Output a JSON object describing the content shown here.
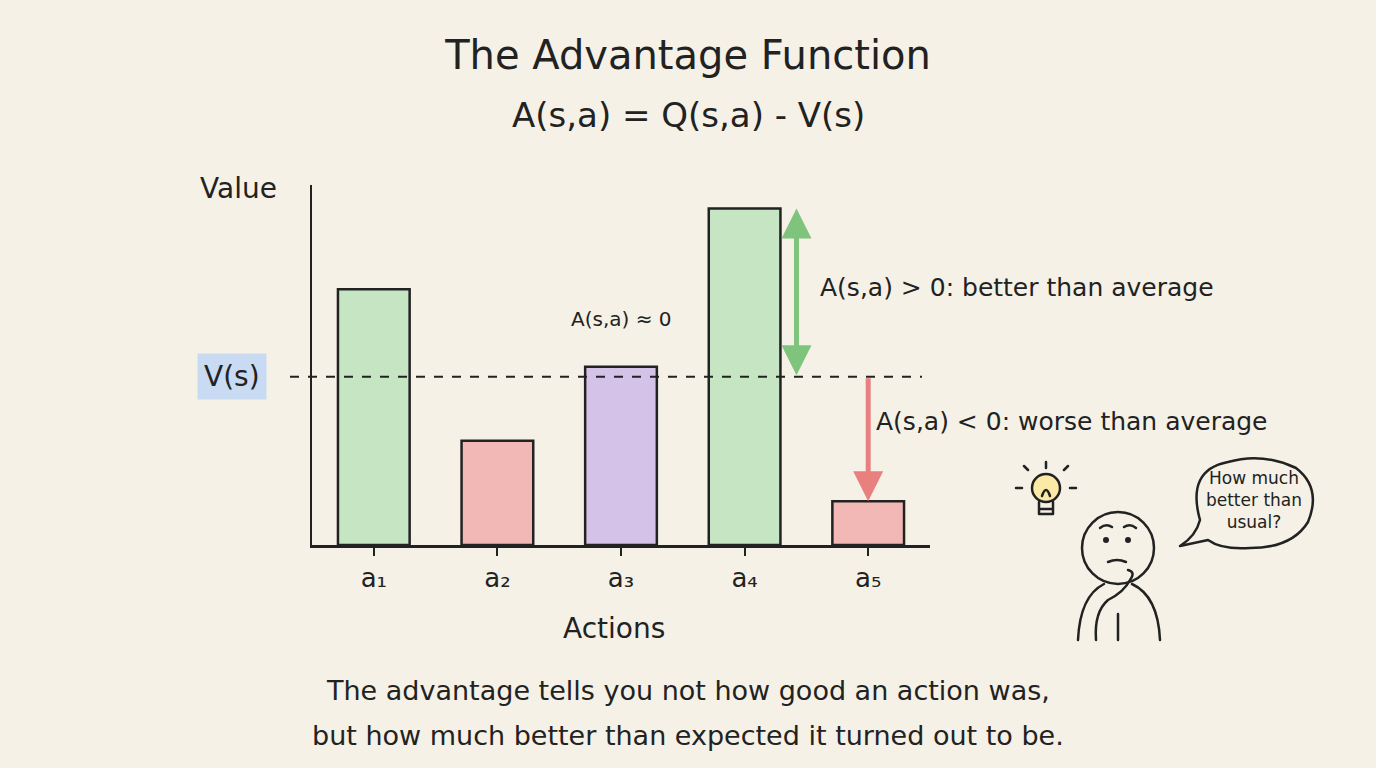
{
  "chart_data": {
    "type": "bar",
    "title": "The Advantage Function",
    "subtitle": "A(s,a) = Q(s,a) - V(s)",
    "x_label": "Actions",
    "y_label": "Value",
    "categories": [
      "a₁",
      "a₂",
      "a₃",
      "a₄",
      "a₅"
    ],
    "values": [
      76,
      31,
      53,
      100,
      13
    ],
    "colors": [
      "#c6e5c3",
      "#f2b8b5",
      "#d5c2e8",
      "#c6e5c3",
      "#f2b8b5"
    ],
    "ylim": [
      0,
      107
    ],
    "yticks": [],
    "grid": false,
    "tick_labels": "x",
    "reference": {
      "label": "V(s)",
      "value": 50
    },
    "annotations": {
      "near_zero": "A(s,a) ≈ 0",
      "positive": "A(s,a) > 0: better than average",
      "negative": "A(s,a) < 0: worse than average"
    },
    "thought_bubble": [
      "How much",
      "better than",
      "usual?"
    ],
    "caption": [
      "The advantage tells you not how good an action was,",
      "but how much better than expected it turned out to be."
    ]
  }
}
